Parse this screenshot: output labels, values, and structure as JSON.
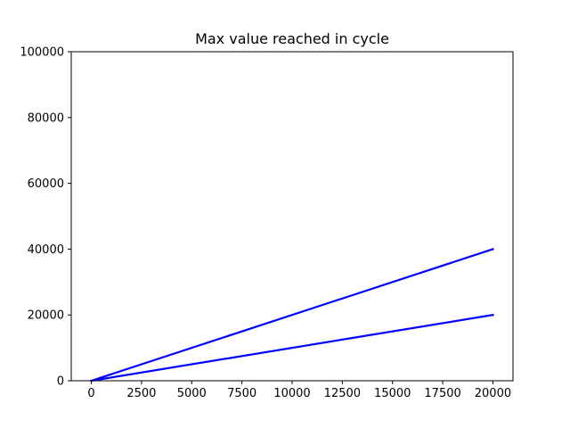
{
  "chart_data": {
    "type": "line",
    "title": "Max value reached in cycle",
    "xlabel": "",
    "ylabel": "",
    "xlim": [
      -1000,
      21000
    ],
    "ylim": [
      0,
      100000
    ],
    "x_ticks": [
      0,
      2500,
      5000,
      7500,
      10000,
      12500,
      15000,
      17500,
      20000
    ],
    "y_ticks": [
      0,
      20000,
      40000,
      60000,
      80000,
      100000
    ],
    "grid": false,
    "legend": "none",
    "series": [
      {
        "x": [
          0,
          20000
        ],
        "y": [
          0,
          40000
        ],
        "color": "#0000ff"
      },
      {
        "x": [
          0,
          20000
        ],
        "y": [
          0,
          20000
        ],
        "color": "#0000ff"
      }
    ]
  }
}
